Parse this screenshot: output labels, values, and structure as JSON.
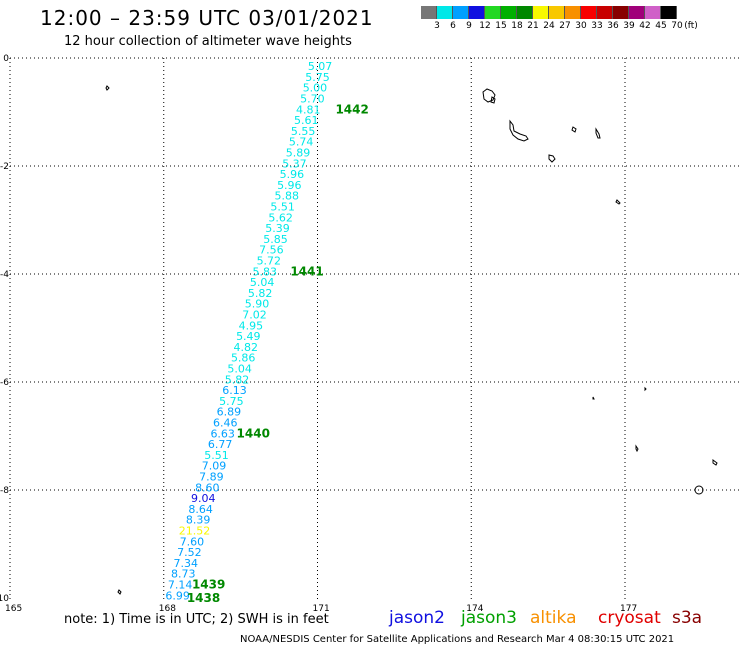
{
  "header": {
    "title": "12:00 – 23:59 UTC 03/01/2021",
    "subtitle": "12 hour collection of altimeter wave heights"
  },
  "color_scale": {
    "unit": "(ft)",
    "bins": [
      {
        "label": "3",
        "color": "#777777"
      },
      {
        "label": "6",
        "color": "#00e8e8"
      },
      {
        "label": "9",
        "color": "#00a0ff"
      },
      {
        "label": "12",
        "color": "#1010e0"
      },
      {
        "label": "15",
        "color": "#22d822"
      },
      {
        "label": "18",
        "color": "#00b000"
      },
      {
        "label": "21",
        "color": "#008800"
      },
      {
        "label": "24",
        "color": "#f8f800"
      },
      {
        "label": "27",
        "color": "#f8c800"
      },
      {
        "label": "30",
        "color": "#f89000"
      },
      {
        "label": "33",
        "color": "#f80000"
      },
      {
        "label": "36",
        "color": "#c80000"
      },
      {
        "label": "39",
        "color": "#880000"
      },
      {
        "label": "42",
        "color": "#a0007a"
      },
      {
        "label": "45",
        "color": "#d060c8"
      },
      {
        "label": "70",
        "color": "#000000"
      }
    ]
  },
  "axes": {
    "x_ticks": [
      "165",
      "168",
      "171",
      "174",
      "177"
    ],
    "y_ticks": [
      "0",
      "-2",
      "-4",
      "-6",
      "-8",
      "-10"
    ]
  },
  "track": {
    "color_light": "#00e8e8",
    "color_mid": "#00a0ff",
    "color_high": "#1010e0",
    "color_yellow": "#f8f800",
    "points": [
      {
        "lon": 171.05,
        "lat": -0.15,
        "swh": "5.07",
        "band": "light"
      },
      {
        "lon": 171.0,
        "lat": -0.35,
        "swh": "5.75",
        "band": "light"
      },
      {
        "lon": 170.95,
        "lat": -0.55,
        "swh": "5.00",
        "band": "light"
      },
      {
        "lon": 170.9,
        "lat": -0.75,
        "swh": "5.70",
        "band": "light"
      },
      {
        "lon": 170.82,
        "lat": -0.95,
        "swh": "4.81",
        "band": "light"
      },
      {
        "lon": 170.78,
        "lat": -1.15,
        "swh": "5.61",
        "band": "light"
      },
      {
        "lon": 170.72,
        "lat": -1.35,
        "swh": "5.55",
        "band": "light"
      },
      {
        "lon": 170.68,
        "lat": -1.55,
        "swh": "5.74",
        "band": "light"
      },
      {
        "lon": 170.62,
        "lat": -1.75,
        "swh": "5.89",
        "band": "light"
      },
      {
        "lon": 170.55,
        "lat": -1.95,
        "swh": "5.37",
        "band": "light"
      },
      {
        "lon": 170.5,
        "lat": -2.15,
        "swh": "5.96",
        "band": "light"
      },
      {
        "lon": 170.45,
        "lat": -2.35,
        "swh": "5.96",
        "band": "light"
      },
      {
        "lon": 170.4,
        "lat": -2.55,
        "swh": "5.88",
        "band": "light"
      },
      {
        "lon": 170.32,
        "lat": -2.75,
        "swh": "5.51",
        "band": "light"
      },
      {
        "lon": 170.28,
        "lat": -2.95,
        "swh": "5.62",
        "band": "light"
      },
      {
        "lon": 170.22,
        "lat": -3.15,
        "swh": "5.39",
        "band": "light"
      },
      {
        "lon": 170.18,
        "lat": -3.35,
        "swh": "5.85",
        "band": "light"
      },
      {
        "lon": 170.1,
        "lat": -3.55,
        "swh": "7.56",
        "band": "light"
      },
      {
        "lon": 170.05,
        "lat": -3.75,
        "swh": "5.72",
        "band": "light"
      },
      {
        "lon": 169.97,
        "lat": -3.95,
        "swh": "5.83",
        "band": "light"
      },
      {
        "lon": 169.92,
        "lat": -4.15,
        "swh": "5.04",
        "band": "light"
      },
      {
        "lon": 169.88,
        "lat": -4.35,
        "swh": "5.82",
        "band": "light"
      },
      {
        "lon": 169.82,
        "lat": -4.55,
        "swh": "5.90",
        "band": "light"
      },
      {
        "lon": 169.77,
        "lat": -4.75,
        "swh": "7.02",
        "band": "light"
      },
      {
        "lon": 169.7,
        "lat": -4.95,
        "swh": "4.95",
        "band": "light"
      },
      {
        "lon": 169.65,
        "lat": -5.15,
        "swh": "5.49",
        "band": "light"
      },
      {
        "lon": 169.6,
        "lat": -5.35,
        "swh": "4.82",
        "band": "light"
      },
      {
        "lon": 169.55,
        "lat": -5.55,
        "swh": "5.86",
        "band": "light"
      },
      {
        "lon": 169.48,
        "lat": -5.75,
        "swh": "5.04",
        "band": "light"
      },
      {
        "lon": 169.43,
        "lat": -5.95,
        "swh": "5.82",
        "band": "light"
      },
      {
        "lon": 169.38,
        "lat": -6.15,
        "swh": "6.13",
        "band": "mid"
      },
      {
        "lon": 169.32,
        "lat": -6.35,
        "swh": "5.75",
        "band": "light"
      },
      {
        "lon": 169.27,
        "lat": -6.55,
        "swh": "6.89",
        "band": "mid"
      },
      {
        "lon": 169.2,
        "lat": -6.75,
        "swh": "6.46",
        "band": "mid"
      },
      {
        "lon": 169.15,
        "lat": -6.95,
        "swh": "6.63",
        "band": "mid"
      },
      {
        "lon": 169.1,
        "lat": -7.15,
        "swh": "6.77",
        "band": "mid"
      },
      {
        "lon": 169.03,
        "lat": -7.35,
        "swh": "5.51",
        "band": "light"
      },
      {
        "lon": 168.98,
        "lat": -7.55,
        "swh": "7.09",
        "band": "mid"
      },
      {
        "lon": 168.93,
        "lat": -7.75,
        "swh": "7.89",
        "band": "mid"
      },
      {
        "lon": 168.85,
        "lat": -7.95,
        "swh": "8.60",
        "band": "mid"
      },
      {
        "lon": 168.77,
        "lat": -8.15,
        "swh": "9.04",
        "band": "high"
      },
      {
        "lon": 168.72,
        "lat": -8.35,
        "swh": "8.64",
        "band": "mid"
      },
      {
        "lon": 168.67,
        "lat": -8.55,
        "swh": "8.39",
        "band": "mid"
      },
      {
        "lon": 168.6,
        "lat": -8.75,
        "swh": "21.52",
        "band": "yellow"
      },
      {
        "lon": 168.55,
        "lat": -8.95,
        "swh": "7.60",
        "band": "mid"
      },
      {
        "lon": 168.5,
        "lat": -9.15,
        "swh": "7.52",
        "band": "mid"
      },
      {
        "lon": 168.43,
        "lat": -9.35,
        "swh": "7.34",
        "band": "mid"
      },
      {
        "lon": 168.38,
        "lat": -9.55,
        "swh": "8.73",
        "band": "mid"
      },
      {
        "lon": 168.32,
        "lat": -9.75,
        "swh": "7.14",
        "band": "mid"
      },
      {
        "lon": 168.27,
        "lat": -9.95,
        "swh": "6.99",
        "band": "mid"
      }
    ]
  },
  "orbits": {
    "color": "#008800",
    "labels": [
      {
        "text": "1442",
        "lon": 171.35,
        "lat": -0.95
      },
      {
        "text": "1441",
        "lon": 170.47,
        "lat": -3.95
      },
      {
        "text": "1440",
        "lon": 169.42,
        "lat": -6.95
      },
      {
        "text": "1439",
        "lon": 168.55,
        "lat": -9.75
      },
      {
        "text": "1438",
        "lon": 168.45,
        "lat": -10.0
      }
    ]
  },
  "footer": {
    "note": "note:  1) Time is in UTC;  2) SWH is in feet",
    "satellites": [
      {
        "name": "jason2",
        "color": "#1010e0"
      },
      {
        "name": "jason3",
        "color": "#00a000"
      },
      {
        "name": "altika",
        "color": "#f89000"
      },
      {
        "name": "cryosat",
        "color": "#e00000"
      },
      {
        "name": "s3a",
        "color": "#880000"
      }
    ],
    "credit": "NOAA/NESDIS Center for Satellite Applications and Research    Mar  4 08:30:15 UTC 2021"
  }
}
